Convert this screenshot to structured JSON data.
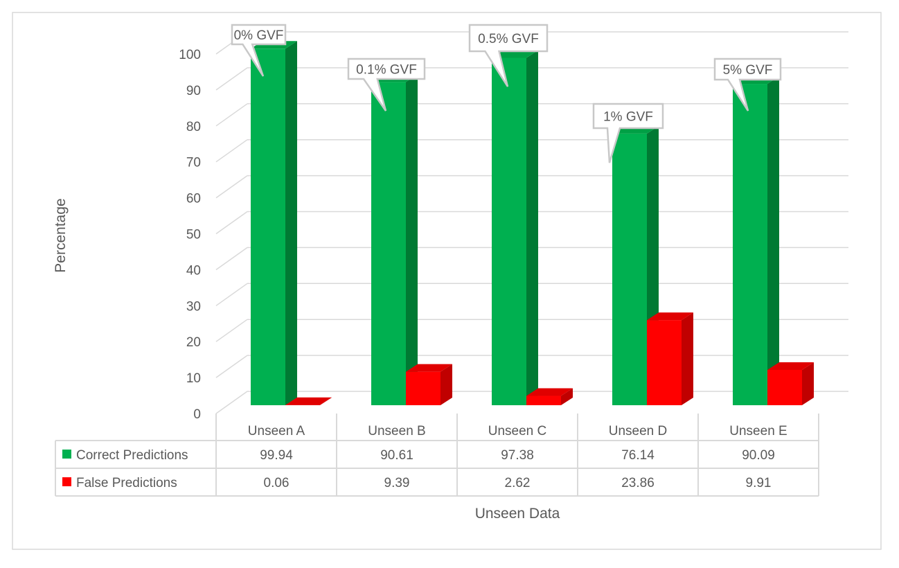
{
  "chart_data": {
    "type": "bar",
    "title": "",
    "xlabel": "Unseen Data",
    "ylabel": "Percentage",
    "ylim": [
      0,
      100
    ],
    "yticks": [
      "0",
      "10",
      "20",
      "30",
      "40",
      "50",
      "60",
      "70",
      "80",
      "90",
      "100"
    ],
    "categories": [
      "Unseen A",
      "Unseen B",
      "Unseen C",
      "Unseen D",
      "Unseen E"
    ],
    "series": [
      {
        "name": "Correct Predictions",
        "color": "#00b050",
        "values": [
          99.94,
          90.61,
          97.38,
          76.14,
          90.09
        ],
        "labels": [
          "99.94",
          "90.61",
          "97.38",
          "76.14",
          "90.09"
        ]
      },
      {
        "name": "False Predictions",
        "color": "#ff0000",
        "values": [
          0.06,
          9.39,
          2.62,
          23.86,
          9.91
        ],
        "labels": [
          "0.06",
          "9.39",
          "2.62",
          "23.86",
          "9.91"
        ]
      }
    ],
    "annotations": [
      "0% GVF",
      "0.1% GVF",
      "0.5% GVF",
      "1% GVF",
      "5% GVF"
    ],
    "grid": true,
    "legend": "data-table"
  }
}
